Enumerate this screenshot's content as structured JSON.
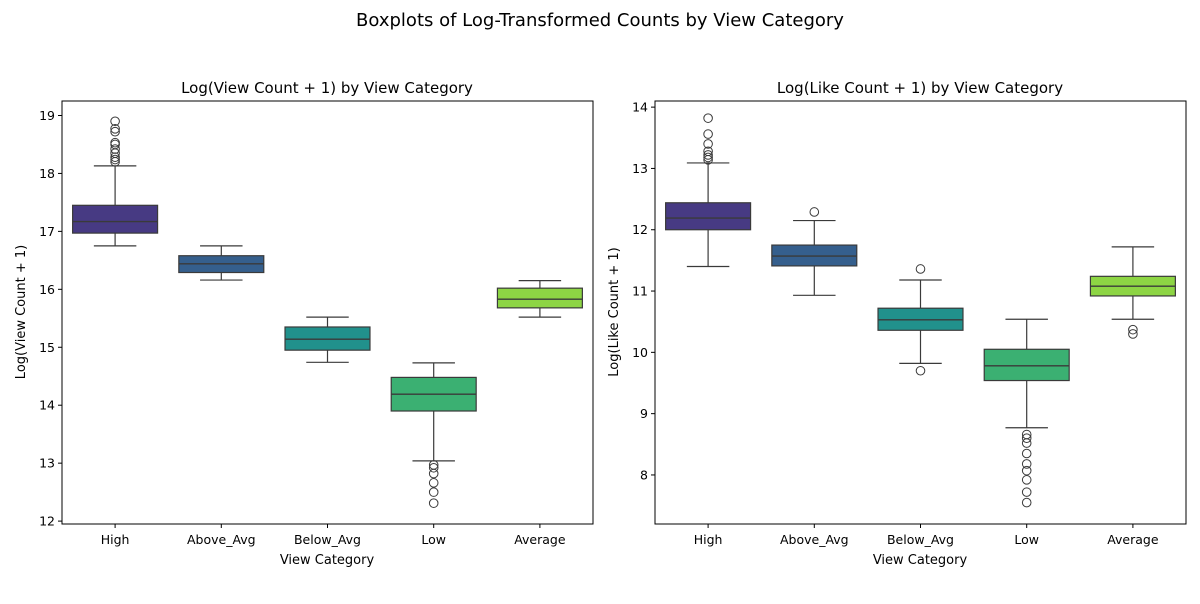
{
  "suptitle": "Boxplots of Log-Transformed Counts by View Category",
  "palette": [
    "#473a83",
    "#355f8d",
    "#21918c",
    "#3bb072",
    "#8dd544"
  ],
  "chart_data": [
    {
      "type": "boxplot",
      "title": "Log(View Count + 1) by View Category",
      "xlabel": "View Category",
      "ylabel": "Log(View Count + 1)",
      "categories": [
        "High",
        "Above_Avg",
        "Below_Avg",
        "Low",
        "Average"
      ],
      "ylim": [
        11.95,
        19.25
      ],
      "yticks": [
        12,
        13,
        14,
        15,
        16,
        17,
        18,
        19
      ],
      "boxes": [
        {
          "whislo": 16.75,
          "q1": 16.97,
          "med": 17.17,
          "q3": 17.45,
          "whishi": 18.13,
          "fliers": [
            18.2,
            18.24,
            18.28,
            18.35,
            18.42,
            18.5,
            18.53,
            18.72,
            18.77,
            18.9
          ]
        },
        {
          "whislo": 16.16,
          "q1": 16.29,
          "med": 16.44,
          "q3": 16.58,
          "whishi": 16.75,
          "fliers": []
        },
        {
          "whislo": 14.74,
          "q1": 14.95,
          "med": 15.14,
          "q3": 15.35,
          "whishi": 15.52,
          "fliers": []
        },
        {
          "whislo": 13.04,
          "q1": 13.9,
          "med": 14.19,
          "q3": 14.48,
          "whishi": 14.73,
          "fliers": [
            12.31,
            12.5,
            12.66,
            12.82,
            12.92,
            12.97
          ]
        },
        {
          "whislo": 15.52,
          "q1": 15.68,
          "med": 15.83,
          "q3": 16.02,
          "whishi": 16.15,
          "fliers": []
        }
      ]
    },
    {
      "type": "boxplot",
      "title": "Log(Like Count + 1) by View Category",
      "xlabel": "View Category",
      "ylabel": "Log(Like Count + 1)",
      "categories": [
        "High",
        "Above_Avg",
        "Below_Avg",
        "Low",
        "Average"
      ],
      "ylim": [
        7.2,
        14.1
      ],
      "yticks": [
        8,
        9,
        10,
        11,
        12,
        13,
        14
      ],
      "boxes": [
        {
          "whislo": 11.4,
          "q1": 12.0,
          "med": 12.19,
          "q3": 12.44,
          "whishi": 13.09,
          "fliers": [
            13.14,
            13.18,
            13.22,
            13.28,
            13.4,
            13.56,
            13.82
          ]
        },
        {
          "whislo": 10.93,
          "q1": 11.41,
          "med": 11.57,
          "q3": 11.75,
          "whishi": 12.15,
          "fliers": [
            12.29
          ]
        },
        {
          "whislo": 9.82,
          "q1": 10.36,
          "med": 10.53,
          "q3": 10.72,
          "whishi": 11.18,
          "fliers": [
            9.7,
            11.36
          ]
        },
        {
          "whislo": 8.77,
          "q1": 9.54,
          "med": 9.78,
          "q3": 10.05,
          "whishi": 10.54,
          "fliers": [
            7.55,
            7.72,
            7.92,
            8.07,
            8.18,
            8.35,
            8.52,
            8.6,
            8.66
          ]
        },
        {
          "whislo": 10.54,
          "q1": 10.92,
          "med": 11.08,
          "q3": 11.24,
          "whishi": 11.72,
          "fliers": [
            10.3,
            10.37
          ]
        }
      ]
    }
  ]
}
